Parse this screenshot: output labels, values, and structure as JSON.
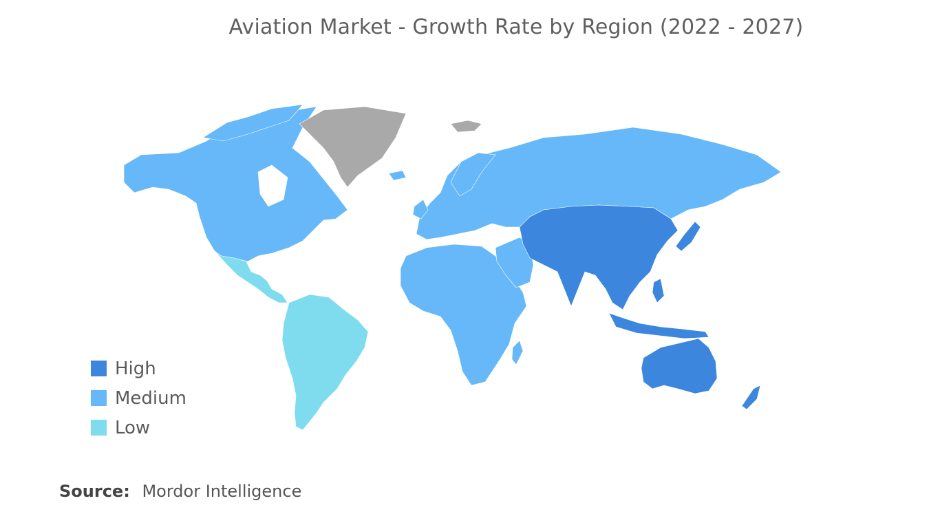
{
  "title": "Aviation Market - Growth Rate by Region (2022 - 2027)",
  "colors": {
    "high": "#3c86de",
    "medium": "#66b8f8",
    "low": "#7fdcee",
    "no_data": "#a9a9a9"
  },
  "legend": [
    {
      "label": "High",
      "color": "#3c86de"
    },
    {
      "label": "Medium",
      "color": "#66b8f8"
    },
    {
      "label": "Low",
      "color": "#7fdcee"
    }
  ],
  "regions": [
    {
      "name": "north-america",
      "level": "medium"
    },
    {
      "name": "latin-america",
      "level": "low"
    },
    {
      "name": "europe",
      "level": "medium"
    },
    {
      "name": "middle-east-africa",
      "level": "medium"
    },
    {
      "name": "asia-pacific",
      "level": "high"
    },
    {
      "name": "greenland",
      "level": "no_data"
    }
  ],
  "source": {
    "label": "Source:",
    "value": "Mordor Intelligence"
  }
}
